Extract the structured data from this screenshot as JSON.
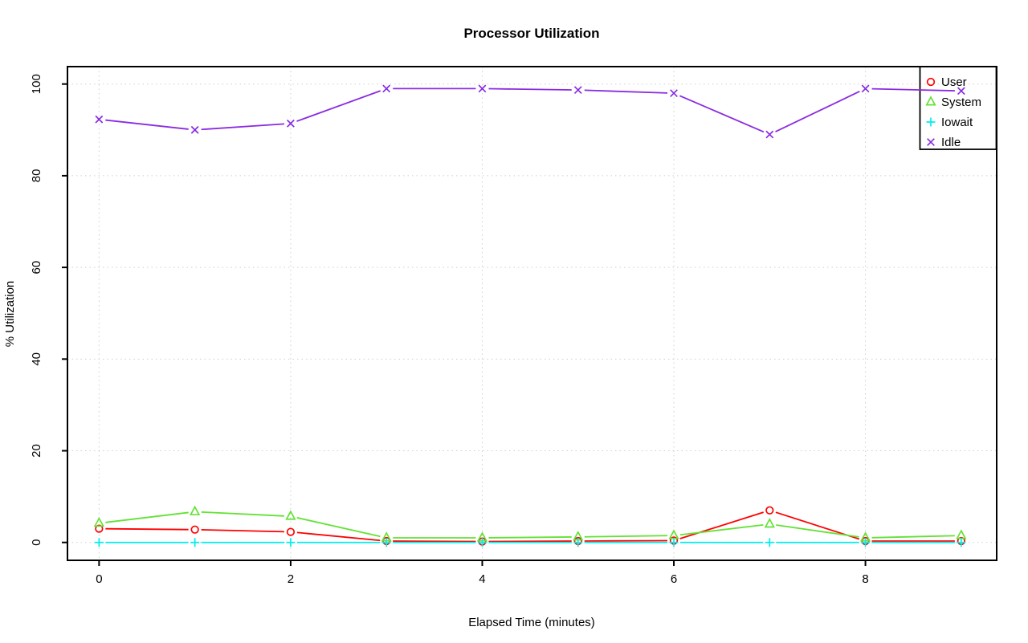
{
  "chart_data": {
    "type": "line",
    "title": "Processor Utilization",
    "xlabel": "Elapsed Time (minutes)",
    "ylabel": "% Utilization",
    "x": [
      0,
      1,
      2,
      3,
      4,
      5,
      6,
      7,
      8,
      9
    ],
    "x_ticks": [
      0,
      2,
      4,
      6,
      8
    ],
    "y_ticks": [
      0,
      20,
      40,
      60,
      80,
      100
    ],
    "xlim": [
      -0.33,
      9.37
    ],
    "ylim": [
      -3.9,
      103.8
    ],
    "grid": "dotted",
    "grid_color": "#cfcfcf",
    "legend_position": "topright",
    "series": [
      {
        "name": "User",
        "marker": "circle",
        "color": "#ff0000",
        "values": [
          3,
          2.8,
          2.3,
          0.3,
          0.2,
          0.3,
          0.4,
          7,
          0.3,
          0.3
        ]
      },
      {
        "name": "System",
        "marker": "triangle",
        "color": "#62e234",
        "values": [
          4.2,
          6.7,
          5.7,
          1,
          1,
          1.2,
          1.5,
          4,
          1,
          1.5
        ]
      },
      {
        "name": "Iowait",
        "marker": "plus",
        "color": "#00eeee",
        "values": [
          0,
          0,
          0,
          0,
          0,
          0,
          0,
          0,
          0,
          0
        ]
      },
      {
        "name": "Idle",
        "marker": "x",
        "color": "#8a2be2",
        "values": [
          92.3,
          90,
          91.4,
          99,
          99,
          98.7,
          98,
          89,
          99,
          98.5
        ]
      }
    ]
  }
}
